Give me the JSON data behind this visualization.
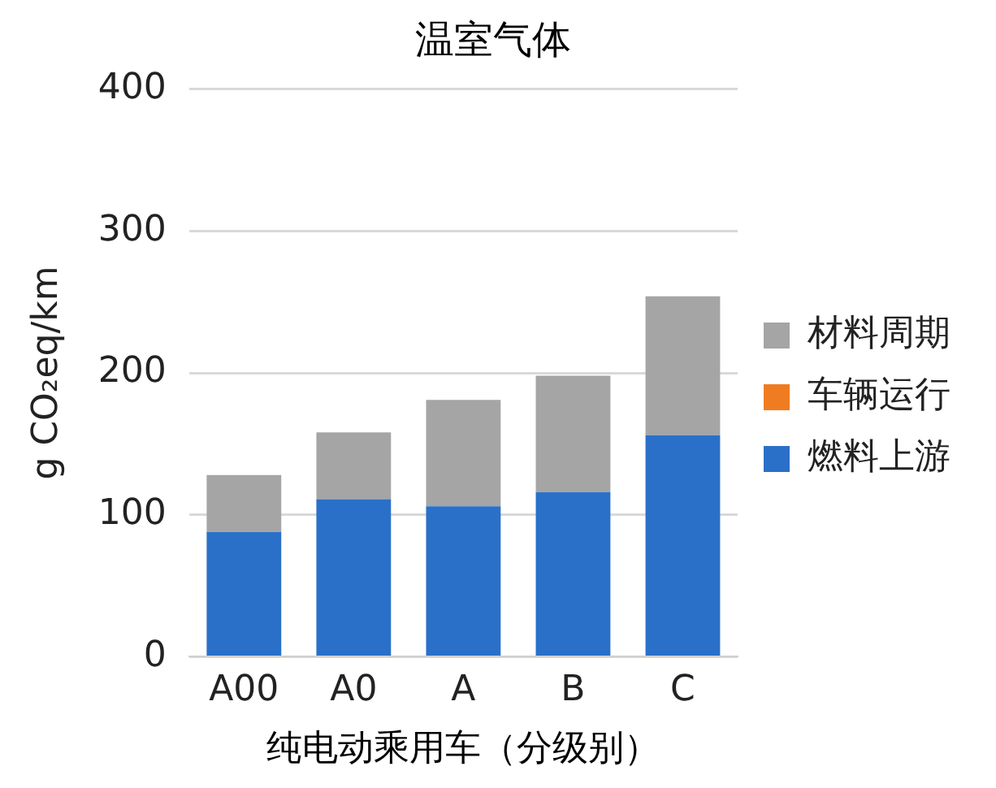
{
  "chart_data": {
    "type": "bar",
    "title": "温室气体",
    "xlabel": "纯电动乘用车（分级别）",
    "ylabel": "g CO₂eq/km",
    "categories": [
      "A00",
      "A0",
      "A",
      "B",
      "C"
    ],
    "stacked": true,
    "series": [
      {
        "name": "燃料上游",
        "color": "#2a70c8",
        "values": [
          88,
          111,
          106,
          116,
          156
        ]
      },
      {
        "name": "车辆运行",
        "color": "#f07c22",
        "values": [
          0,
          0,
          0,
          0,
          0
        ]
      },
      {
        "name": "材料周期",
        "color": "#a5a5a5",
        "values": [
          40,
          47,
          75,
          82,
          98
        ]
      }
    ],
    "ylim": [
      0,
      400
    ],
    "yticks": [
      0,
      100,
      200,
      300,
      400
    ],
    "grid": "y",
    "legend": "right"
  }
}
